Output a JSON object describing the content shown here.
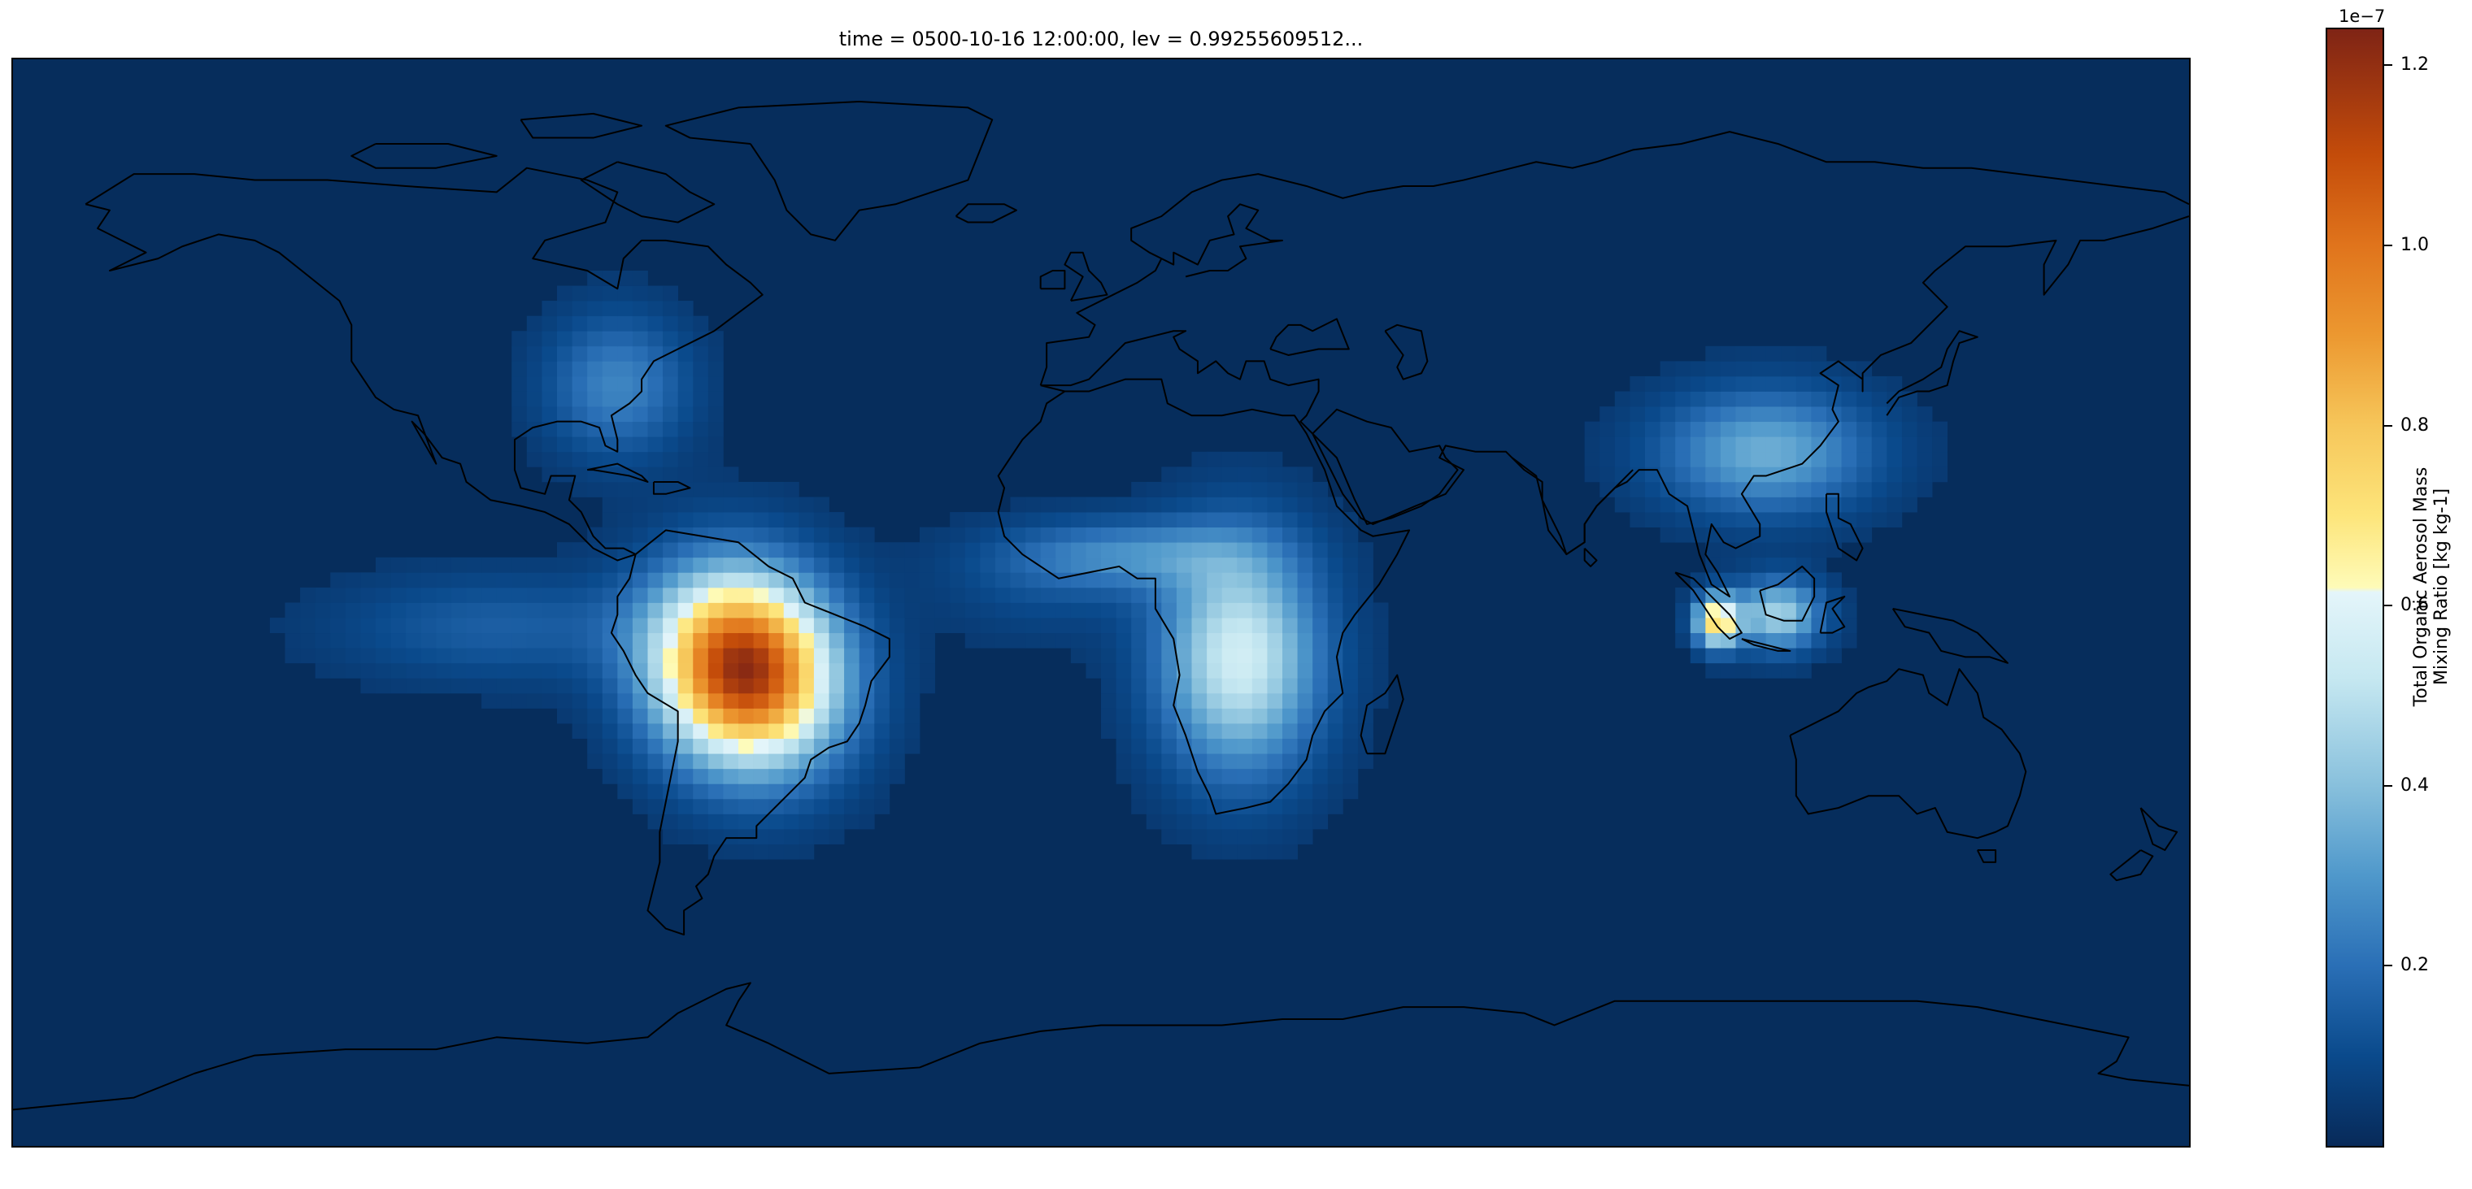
{
  "figure": {
    "title": "time = 0500-10-16 12:00:00, lev = 0.99255609512...",
    "projection": "PlateCarree",
    "field": "Total Organic Aerosol Mass Mixing Ratio",
    "ocean_color": "#062d5c"
  },
  "colorbar": {
    "title_line1": "Total Organic Aerosol Mass",
    "title_line2": "Mixing Ratio [kg kg-1]",
    "offset_label": "1e−7",
    "vmin": 0.0,
    "vmax": 1.24,
    "ticks": [
      "0.2",
      "0.4",
      "0.6",
      "0.8",
      "1.0",
      "1.2"
    ],
    "tick_values": [
      0.2,
      0.4,
      0.6,
      0.8,
      1.0,
      1.2
    ],
    "colormap": [
      {
        "value": 0.0,
        "color": "#082a59"
      },
      {
        "value": 0.1,
        "color": "#0a4a8c"
      },
      {
        "value": 0.2,
        "color": "#2a6fb6"
      },
      {
        "value": 0.3,
        "color": "#4f98cb"
      },
      {
        "value": 0.4,
        "color": "#88c0dc"
      },
      {
        "value": 0.52,
        "color": "#c6e8f1"
      },
      {
        "value": 0.615,
        "color": "#e4f5fa"
      },
      {
        "value": 0.62,
        "color": "#fefbb8"
      },
      {
        "value": 0.7,
        "color": "#fde57b"
      },
      {
        "value": 0.8,
        "color": "#f6c65a"
      },
      {
        "value": 0.9,
        "color": "#ec9830"
      },
      {
        "value": 1.0,
        "color": "#e0741c"
      },
      {
        "value": 1.1,
        "color": "#c44c0a"
      },
      {
        "value": 1.24,
        "color": "#7f2415"
      }
    ]
  },
  "plumes": [
    {
      "region": "Amazon basin",
      "lon": -59,
      "lat": -11,
      "peak": 1.18
    },
    {
      "region": "Central Africa",
      "lon": 23,
      "lat": -9,
      "peak": 0.52
    },
    {
      "region": "Sumatra",
      "lon": 102,
      "lat": -3,
      "peak": 0.68
    },
    {
      "region": "Borneo",
      "lon": 112,
      "lat": -2,
      "peak": 0.42
    },
    {
      "region": "South China",
      "lon": 110,
      "lat": 25,
      "peak": 0.32
    },
    {
      "region": "Eastern United States",
      "lon": -80,
      "lat": 36,
      "peak": 0.22
    },
    {
      "region": "Western Africa",
      "lon": 4,
      "lat": 8,
      "peak": 0.22
    }
  ]
}
